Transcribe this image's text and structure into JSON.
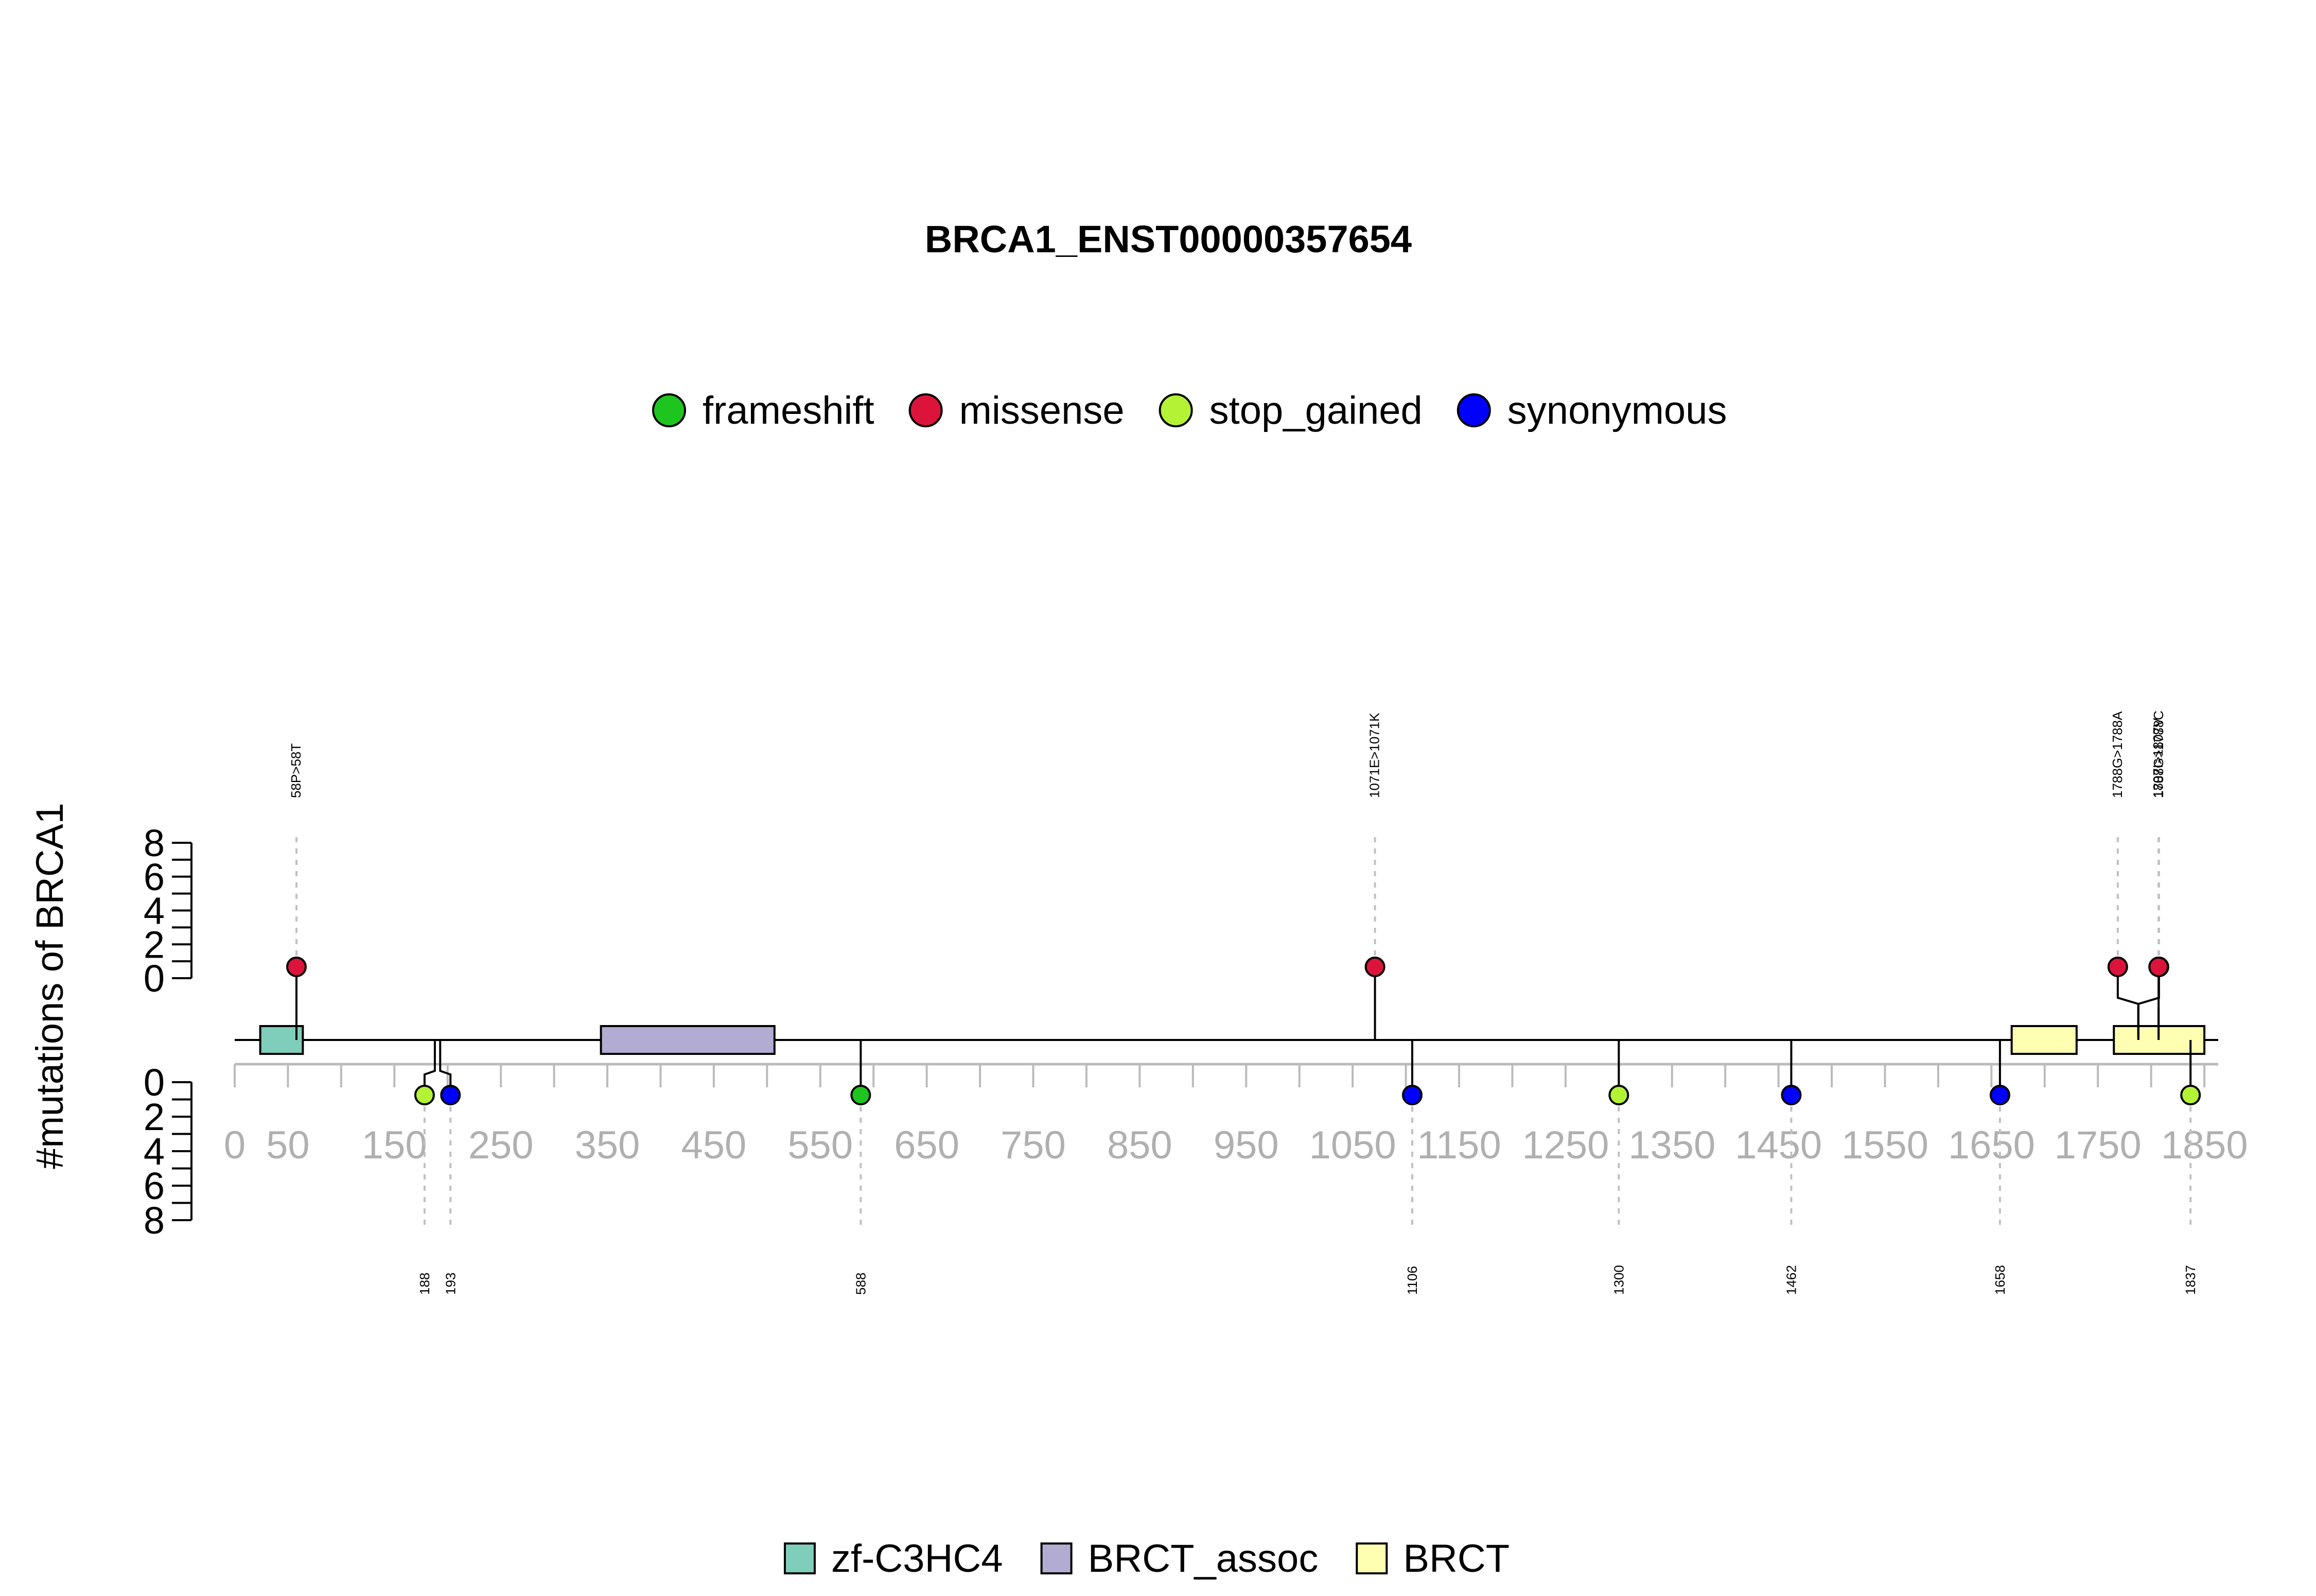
{
  "chart_data": {
    "type": "lollipop",
    "title": "BRCA1_ENST00000357654",
    "ylabel": "#mutations of BRCA1",
    "ylim": [
      0,
      8
    ],
    "y_ticks": [
      "0",
      "2",
      "4",
      "6",
      "8"
    ],
    "xlim": [
      0,
      1863
    ],
    "x_ticks": [
      0,
      50,
      150,
      250,
      350,
      450,
      550,
      650,
      750,
      850,
      950,
      1050,
      1150,
      1250,
      1350,
      1450,
      1550,
      1650,
      1750,
      1850
    ],
    "legend_mutations": [
      {
        "name": "frameshift",
        "color": "#1ec51e"
      },
      {
        "name": "missense",
        "color": "#dc143c"
      },
      {
        "name": "stop_gained",
        "color": "#b3f235"
      },
      {
        "name": "synonymous",
        "color": "#0000ff"
      }
    ],
    "legend_domains": [
      {
        "name": "zf-C3HC4",
        "color": "#7fcdbb"
      },
      {
        "name": "BRCT_assoc",
        "color": "#b2abd2"
      },
      {
        "name": "BRCT",
        "color": "#ffffb2"
      }
    ],
    "domains": [
      {
        "name": "zf-C3HC4",
        "start": 24,
        "end": 64,
        "color": "#7fcdbb"
      },
      {
        "name": "BRCT_assoc",
        "start": 344,
        "end": 507,
        "color": "#b2abd2"
      },
      {
        "name": "BRCT",
        "start": 1669,
        "end": 1730,
        "color": "#ffffb2"
      },
      {
        "name": "BRCT",
        "start": 1765,
        "end": 1850,
        "color": "#ffffb2"
      }
    ],
    "mutations_above": [
      {
        "position": 58,
        "count": 1,
        "type": "missense",
        "label": "58P>58T"
      },
      {
        "position": 1071,
        "count": 1,
        "type": "missense",
        "label": "1071E>1071K"
      },
      {
        "position": 1788,
        "count": 1,
        "type": "missense",
        "label": "1788G>1788A"
      },
      {
        "position": 1788,
        "count": 1,
        "type": "missense",
        "label": "1788G>1788C"
      },
      {
        "position": 1807,
        "count": 1,
        "type": "missense",
        "label": "1807I>1807V"
      }
    ],
    "mutations_below": [
      {
        "position": 188,
        "count": 1,
        "type": "stop_gained",
        "label": "188"
      },
      {
        "position": 193,
        "count": 1,
        "type": "synonymous",
        "label": "193"
      },
      {
        "position": 588,
        "count": 1,
        "type": "frameshift",
        "label": "588"
      },
      {
        "position": 1106,
        "count": 1,
        "type": "synonymous",
        "label": "1106"
      },
      {
        "position": 1300,
        "count": 1,
        "type": "stop_gained",
        "label": "1300"
      },
      {
        "position": 1462,
        "count": 1,
        "type": "synonymous",
        "label": "1462"
      },
      {
        "position": 1658,
        "count": 1,
        "type": "synonymous",
        "label": "1658"
      },
      {
        "position": 1837,
        "count": 1,
        "type": "stop_gained",
        "label": "1837"
      }
    ]
  }
}
